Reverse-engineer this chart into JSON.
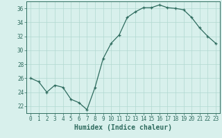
{
  "x": [
    0,
    1,
    2,
    3,
    4,
    5,
    6,
    7,
    8,
    9,
    10,
    11,
    12,
    13,
    14,
    15,
    16,
    17,
    18,
    19,
    20,
    21,
    22,
    23
  ],
  "y": [
    26.0,
    25.5,
    24.0,
    25.0,
    24.7,
    23.0,
    22.5,
    21.5,
    24.7,
    28.8,
    31.0,
    32.2,
    34.7,
    35.5,
    36.1,
    36.1,
    36.5,
    36.1,
    36.0,
    35.8,
    34.7,
    33.2,
    32.0,
    31.0
  ],
  "line_color": "#2e6b5e",
  "marker": "+",
  "marker_size": 3,
  "bg_color": "#d8f0ec",
  "grid_color": "#b0d8d0",
  "xlabel": "Humidex (Indice chaleur)",
  "xlim": [
    -0.5,
    23.5
  ],
  "ylim": [
    21.0,
    37.0
  ],
  "yticks": [
    22,
    24,
    26,
    28,
    30,
    32,
    34,
    36
  ],
  "xticks": [
    0,
    1,
    2,
    3,
    4,
    5,
    6,
    7,
    8,
    9,
    10,
    11,
    12,
    13,
    14,
    15,
    16,
    17,
    18,
    19,
    20,
    21,
    22,
    23
  ],
  "tick_label_fontsize": 5.5,
  "xlabel_fontsize": 7.0,
  "spine_color": "#2e6b5e",
  "tick_color": "#2e6b5e"
}
